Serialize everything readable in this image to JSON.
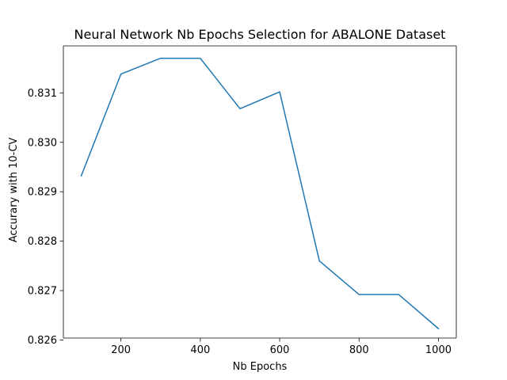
{
  "chart_data": {
    "type": "line",
    "title": "Neural Network Nb Epochs Selection for ABALONE Dataset",
    "xlabel": "Nb Epochs",
    "ylabel": "Accurary with 10-CV",
    "xlim": [
      55,
      1045
    ],
    "ylim": [
      0.82604,
      0.83195
    ],
    "xticks": [
      200,
      400,
      600,
      800,
      1000
    ],
    "xtick_labels": [
      "200",
      "400",
      "600",
      "800",
      "1000"
    ],
    "yticks": [
      0.826,
      0.827,
      0.828,
      0.829,
      0.83,
      0.831
    ],
    "ytick_labels": [
      "0.826",
      "0.827",
      "0.828",
      "0.829",
      "0.830",
      "0.831"
    ],
    "grid": false,
    "series": [
      {
        "x": [
          100,
          200,
          300,
          400,
          500,
          600,
          700,
          800,
          900,
          1000
        ],
        "y": [
          0.82932,
          0.83138,
          0.8317,
          0.8317,
          0.83068,
          0.83102,
          0.8276,
          0.82692,
          0.82692,
          0.82623
        ],
        "color": "#1f77b4"
      }
    ]
  }
}
